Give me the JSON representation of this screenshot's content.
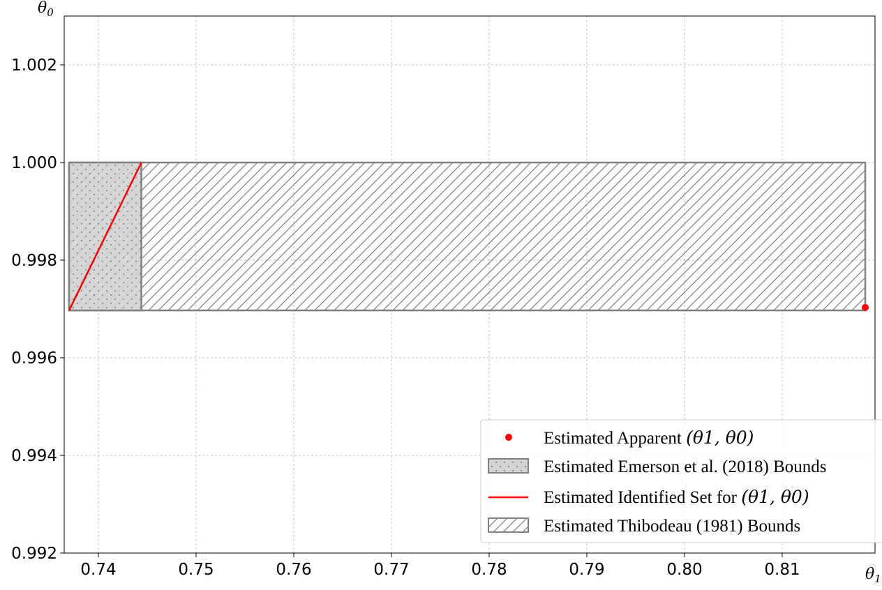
{
  "chart_data": {
    "type": "scatter",
    "title": "",
    "xlabel": "θ1",
    "ylabel": "θ0",
    "xlim": [
      0.7365,
      0.8195
    ],
    "ylim": [
      0.992,
      1.003
    ],
    "xticks": [
      0.74,
      0.75,
      0.76,
      0.77,
      0.78,
      0.79,
      0.8,
      0.81
    ],
    "xtick_labels": [
      "0.74",
      "0.75",
      "0.76",
      "0.77",
      "0.78",
      "0.79",
      "0.80",
      "0.81"
    ],
    "yticks": [
      0.992,
      0.994,
      0.996,
      0.998,
      1.0,
      1.002
    ],
    "ytick_labels": [
      "0.992",
      "0.994",
      "0.996",
      "0.998",
      "1.000",
      "1.002"
    ],
    "grid": true,
    "legend_position": "bottom-right",
    "series": [
      {
        "name": "Estimated Apparent (θ1, θ0)",
        "kind": "point",
        "color": "#ff0000",
        "x": 0.8185,
        "y": 0.99703
      },
      {
        "name": "Estimated Emerson et al. (2018) Bounds",
        "kind": "rect",
        "pattern": "dots",
        "color": "#808080",
        "fill": "#d3d3d3",
        "x": [
          0.737,
          0.7444
        ],
        "y": [
          0.99697,
          1.0
        ]
      },
      {
        "name": "Estimated Identified Set for (θ1, θ0)",
        "kind": "line",
        "color": "#ff0000",
        "x": [
          0.737,
          0.7444
        ],
        "y": [
          0.99697,
          1.0
        ]
      },
      {
        "name": "Estimated Thibodeau (1981) Bounds",
        "kind": "rect",
        "pattern": "hatch",
        "color": "#808080",
        "x": [
          0.737,
          0.8185
        ],
        "y": [
          0.99697,
          1.0
        ]
      }
    ]
  },
  "legend": {
    "items": [
      {
        "prefix": "Estimated Apparent ",
        "math": "(θ1, θ0)"
      },
      {
        "prefix": "Estimated Emerson et al. (2018) Bounds",
        "math": ""
      },
      {
        "prefix": "Estimated Identified Set for ",
        "math": "(θ1, θ0)"
      },
      {
        "prefix": "Estimated Thibodeau (1981) Bounds",
        "math": ""
      }
    ]
  }
}
